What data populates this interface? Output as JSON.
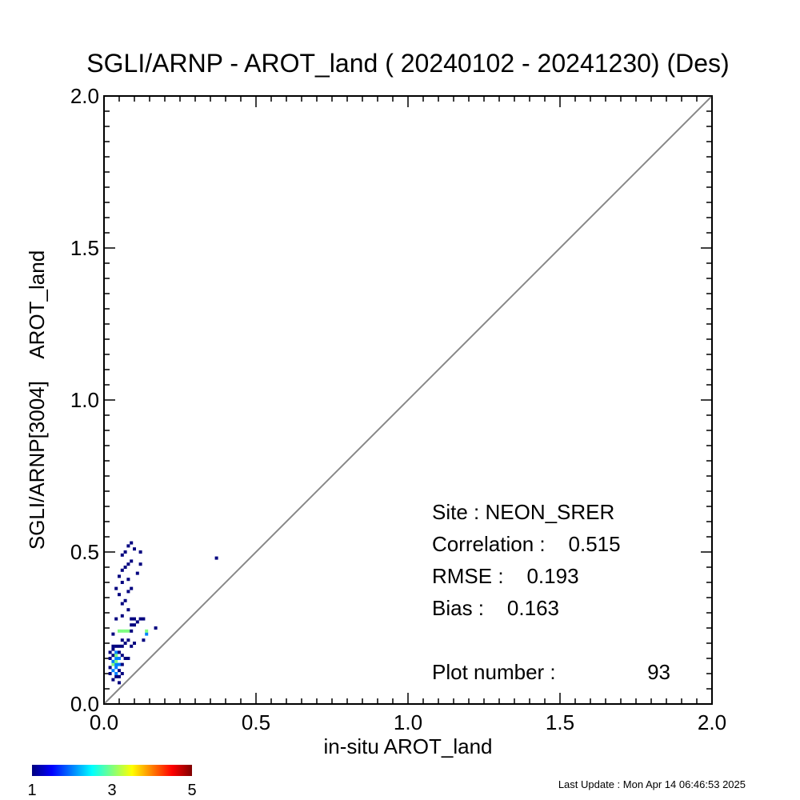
{
  "chart_data": {
    "type": "scatter",
    "title": "SGLI/ARNP - AROT_land ( 20240102 - 20241230) (Des)",
    "xlabel": "in-situ AROT_land",
    "ylabel": "SGLI/ARNP[3004]    AROT_land",
    "xlim": [
      0,
      2
    ],
    "ylim": [
      0,
      2
    ],
    "xticks": [
      "0.0",
      "0.5",
      "1.0",
      "1.5",
      "2.0"
    ],
    "yticks": [
      "0.0",
      "0.5",
      "1.0",
      "1.5",
      "2.0"
    ],
    "grid": false,
    "reference_line": "1:1",
    "stats": {
      "site": "Site : NEON_SRER",
      "correlation": "Correlation :    0.515",
      "rmse": "RMSE :    0.193",
      "bias": "Bias :    0.163",
      "plot_number_label": "Plot number :",
      "plot_number_value": "93"
    },
    "colorbar": {
      "min_label": "1",
      "mid_label": "3",
      "max_label": "5",
      "colors": [
        "#00007f",
        "#0000ff",
        "#007fff",
        "#00ffff",
        "#7fff7f",
        "#ffff00",
        "#ff7f00",
        "#ff0000",
        "#7f0000"
      ]
    },
    "points": [
      [
        0.02,
        0.1,
        1
      ],
      [
        0.02,
        0.12,
        1
      ],
      [
        0.02,
        0.15,
        1
      ],
      [
        0.02,
        0.17,
        1
      ],
      [
        0.03,
        0.08,
        1
      ],
      [
        0.03,
        0.11,
        2
      ],
      [
        0.03,
        0.13,
        3
      ],
      [
        0.03,
        0.14,
        2
      ],
      [
        0.03,
        0.16,
        1
      ],
      [
        0.03,
        0.18,
        1
      ],
      [
        0.03,
        0.19,
        1
      ],
      [
        0.03,
        0.23,
        1
      ],
      [
        0.04,
        0.09,
        1
      ],
      [
        0.04,
        0.1,
        2
      ],
      [
        0.04,
        0.12,
        2
      ],
      [
        0.04,
        0.13,
        2
      ],
      [
        0.04,
        0.14,
        3
      ],
      [
        0.04,
        0.15,
        2
      ],
      [
        0.04,
        0.16,
        3
      ],
      [
        0.04,
        0.17,
        2
      ],
      [
        0.04,
        0.19,
        1
      ],
      [
        0.04,
        0.28,
        1
      ],
      [
        0.04,
        0.38,
        1
      ],
      [
        0.05,
        0.07,
        1
      ],
      [
        0.05,
        0.09,
        1
      ],
      [
        0.05,
        0.11,
        1
      ],
      [
        0.05,
        0.13,
        2
      ],
      [
        0.05,
        0.15,
        2
      ],
      [
        0.05,
        0.17,
        1
      ],
      [
        0.05,
        0.19,
        1
      ],
      [
        0.05,
        0.24,
        3
      ],
      [
        0.05,
        0.36,
        1
      ],
      [
        0.05,
        0.42,
        1
      ],
      [
        0.06,
        0.1,
        1
      ],
      [
        0.06,
        0.13,
        1
      ],
      [
        0.06,
        0.16,
        1
      ],
      [
        0.06,
        0.19,
        1
      ],
      [
        0.06,
        0.21,
        1
      ],
      [
        0.06,
        0.24,
        3
      ],
      [
        0.06,
        0.29,
        1
      ],
      [
        0.06,
        0.33,
        1
      ],
      [
        0.06,
        0.4,
        1
      ],
      [
        0.06,
        0.44,
        1
      ],
      [
        0.06,
        0.49,
        1
      ],
      [
        0.07,
        0.15,
        1
      ],
      [
        0.07,
        0.2,
        1
      ],
      [
        0.07,
        0.24,
        3
      ],
      [
        0.07,
        0.34,
        1
      ],
      [
        0.07,
        0.45,
        1
      ],
      [
        0.07,
        0.5,
        1
      ],
      [
        0.08,
        0.15,
        1
      ],
      [
        0.08,
        0.21,
        1
      ],
      [
        0.08,
        0.24,
        3
      ],
      [
        0.08,
        0.31,
        1
      ],
      [
        0.08,
        0.37,
        1
      ],
      [
        0.08,
        0.41,
        1
      ],
      [
        0.08,
        0.46,
        1
      ],
      [
        0.08,
        0.52,
        1
      ],
      [
        0.09,
        0.19,
        1
      ],
      [
        0.09,
        0.24,
        1
      ],
      [
        0.09,
        0.26,
        1
      ],
      [
        0.09,
        0.28,
        1
      ],
      [
        0.09,
        0.38,
        1
      ],
      [
        0.09,
        0.47,
        1
      ],
      [
        0.09,
        0.53,
        1
      ],
      [
        0.1,
        0.2,
        1
      ],
      [
        0.1,
        0.26,
        1
      ],
      [
        0.1,
        0.28,
        1
      ],
      [
        0.1,
        0.51,
        1
      ],
      [
        0.11,
        0.27,
        1
      ],
      [
        0.11,
        0.43,
        1
      ],
      [
        0.12,
        0.28,
        1
      ],
      [
        0.12,
        0.46,
        1
      ],
      [
        0.12,
        0.5,
        1
      ],
      [
        0.13,
        0.21,
        1
      ],
      [
        0.13,
        0.28,
        1
      ],
      [
        0.14,
        0.23,
        2
      ],
      [
        0.14,
        0.24,
        3
      ],
      [
        0.17,
        0.25,
        1
      ],
      [
        0.37,
        0.48,
        1
      ]
    ]
  },
  "footer": {
    "last_update": "Last Update : Mon Apr 14 06:46:53 2025"
  }
}
